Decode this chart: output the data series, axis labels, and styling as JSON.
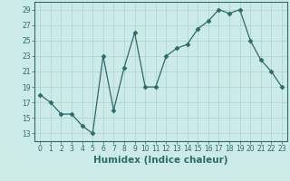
{
  "x": [
    0,
    1,
    2,
    3,
    4,
    5,
    6,
    7,
    8,
    9,
    10,
    11,
    12,
    13,
    14,
    15,
    16,
    17,
    18,
    19,
    20,
    21,
    22,
    23
  ],
  "y": [
    18,
    17,
    15.5,
    15.5,
    14,
    13,
    23,
    16,
    21.5,
    26,
    19,
    19,
    23,
    24,
    24.5,
    26.5,
    27.5,
    29,
    28.5,
    29,
    25,
    22.5,
    21,
    19
  ],
  "line_color": "#2d6b6b",
  "marker": "D",
  "marker_size": 2.5,
  "bg_color": "#cceae8",
  "grid_color": "#aad4d2",
  "xlabel": "Humidex (Indice chaleur)",
  "xlim": [
    -0.5,
    23.5
  ],
  "ylim": [
    12,
    30
  ],
  "yticks": [
    13,
    15,
    17,
    19,
    21,
    23,
    25,
    27,
    29
  ],
  "xticks": [
    0,
    1,
    2,
    3,
    4,
    5,
    6,
    7,
    8,
    9,
    10,
    11,
    12,
    13,
    14,
    15,
    16,
    17,
    18,
    19,
    20,
    21,
    22,
    23
  ],
  "tick_color": "#2d6b6b",
  "spine_color": "#2d6b6b",
  "xlabel_fontsize": 7.5,
  "tick_fontsize": 5.5
}
